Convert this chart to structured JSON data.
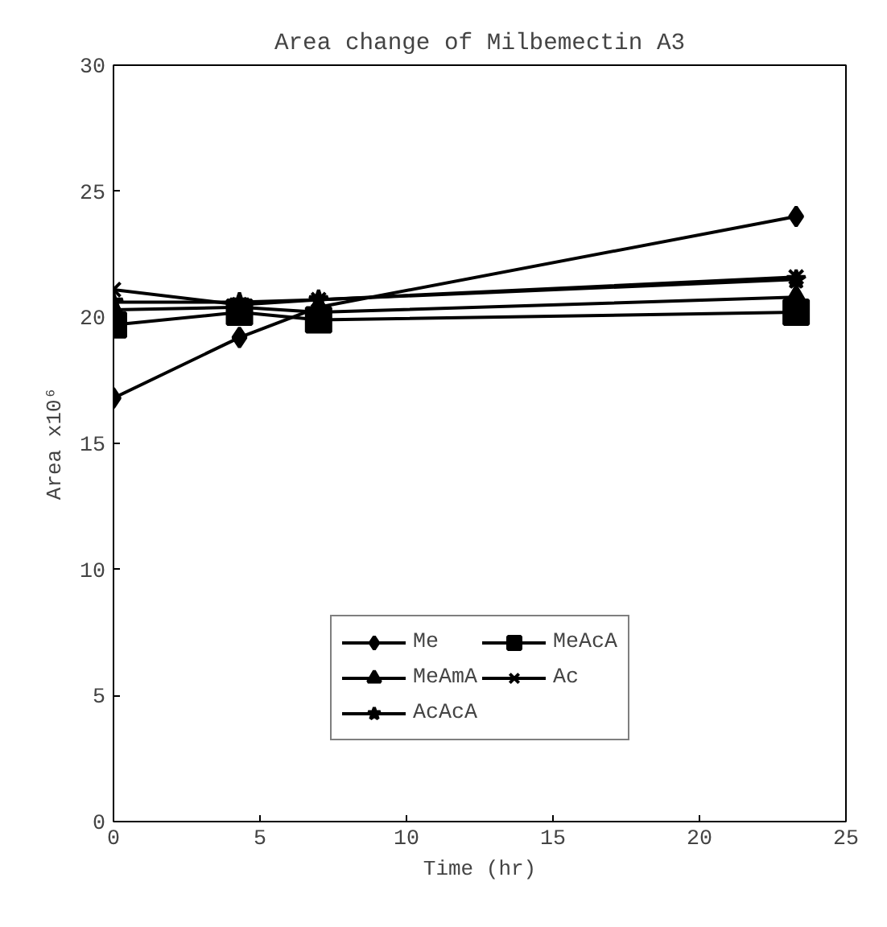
{
  "chart_data": {
    "type": "line",
    "title": "Area change of Milbemectin A3",
    "xlabel": "Time (hr)",
    "ylabel": "Area x10⁶",
    "x": [
      0,
      4.3,
      7,
      23.3
    ],
    "series": [
      {
        "name": "Me",
        "color": "#000000",
        "marker": "diamond",
        "values": [
          16.8,
          19.2,
          20.4,
          24.0
        ]
      },
      {
        "name": "MeAcA",
        "color": "#000000",
        "marker": "square",
        "values": [
          19.7,
          20.2,
          19.9,
          20.2
        ]
      },
      {
        "name": "MeAmA",
        "color": "#000000",
        "marker": "triangle",
        "values": [
          20.3,
          20.4,
          20.2,
          20.8
        ]
      },
      {
        "name": "Ac",
        "color": "#000000",
        "marker": "cross",
        "values": [
          21.1,
          20.5,
          20.7,
          21.6
        ]
      },
      {
        "name": "AcAcA",
        "color": "#000000",
        "marker": "star",
        "values": [
          20.6,
          20.6,
          20.7,
          21.5
        ]
      }
    ],
    "xlim": [
      0,
      25
    ],
    "xticks": [
      0,
      5,
      10,
      15,
      20,
      25
    ],
    "ylim": [
      0,
      30
    ],
    "yticks": [
      0,
      5,
      10,
      15,
      20,
      25,
      30
    ],
    "grid": false,
    "legend": "bottom",
    "line_style": "solid"
  }
}
